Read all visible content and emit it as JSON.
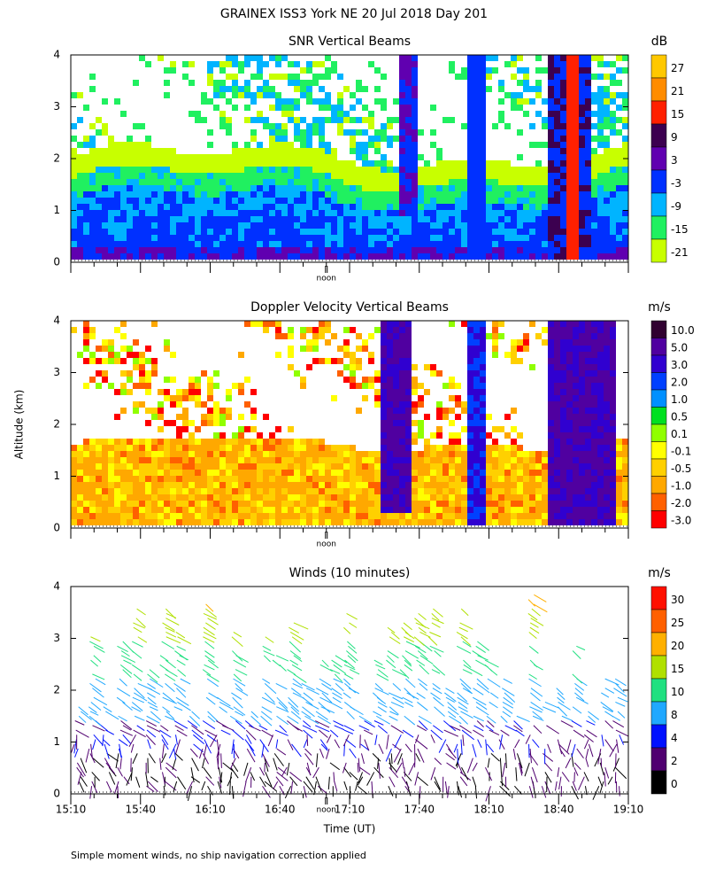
{
  "chart_data": {
    "type": "heatmap",
    "title": "GRAINEX ISS3 York NE  20 Jul 2018 Day 201",
    "y_axis_label": "Altitude (km)",
    "x_axis_label": "Time (UT)",
    "yticks": [
      0,
      1,
      2,
      3,
      4
    ],
    "xticks": [
      "15:10",
      "15:40",
      "16:10",
      "16:40",
      "17:10",
      "17:40",
      "18:10",
      "18:40",
      "19:10"
    ],
    "noon": "noon",
    "footnote": "Simple moment winds, no ship navigation correction applied",
    "panels": [
      {
        "title": "SNR Vertical Beams",
        "unit": "dB",
        "colorbar": {
          "labels": [
            "27",
            "21",
            "15",
            "9",
            "3",
            "-3",
            "-9",
            "-15",
            "-21"
          ],
          "colors": [
            "#ffc800",
            "#ff8c00",
            "#ff2000",
            "#3c0050",
            "#6000b0",
            "#0030ff",
            "#00b4ff",
            "#20f060",
            "#c8ff00"
          ]
        }
      },
      {
        "title": "Doppler Velocity Vertical Beams",
        "unit": "m/s",
        "colorbar": {
          "labels": [
            "10.0",
            "5.0",
            "3.0",
            "2.0",
            "1.0",
            "0.5",
            "0.1",
            "-0.1",
            "-0.5",
            "-1.0",
            "-2.0",
            "-3.0"
          ],
          "colors": [
            "#300030",
            "#5000a0",
            "#3000d0",
            "#0040ff",
            "#0090ff",
            "#00e020",
            "#90ff00",
            "#ffff00",
            "#ffd000",
            "#ffa800",
            "#ff6000",
            "#ff0000"
          ]
        }
      },
      {
        "title": "Winds (10 minutes)",
        "unit": "m/s",
        "colorbar": {
          "labels": [
            "30",
            "25",
            "20",
            "15",
            "10",
            "8",
            "4",
            "2",
            "0"
          ],
          "colors": [
            "#ff1000",
            "#ff6000",
            "#ffb000",
            "#b0e000",
            "#20e080",
            "#20a8ff",
            "#0010ff",
            "#500070",
            "#000000"
          ]
        }
      }
    ]
  }
}
